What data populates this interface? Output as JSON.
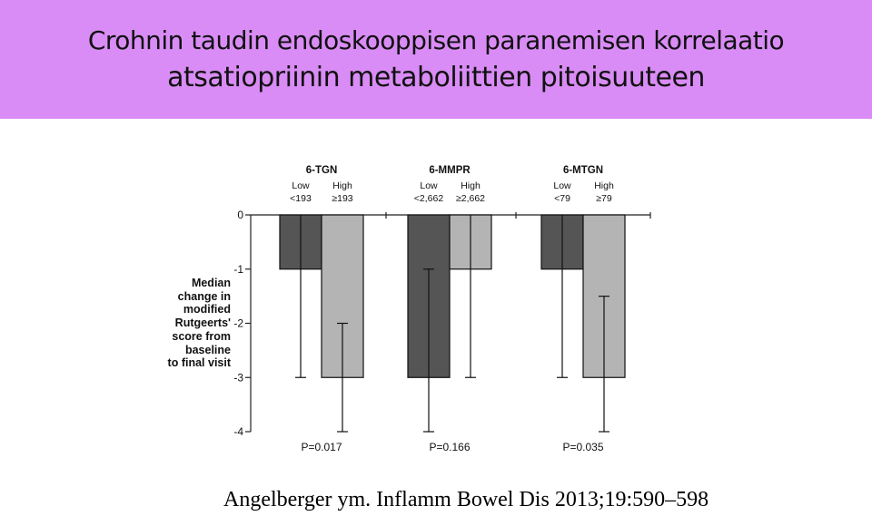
{
  "title": {
    "line1": "Crohnin taudin endoskooppisen paranemisen korrelaatio",
    "line2": "atsatiopriinin metaboliittien pitoisuuteen"
  },
  "citation": "Angelberger ym. Inflamm Bowel Dis 2013;19:590–598",
  "colors": {
    "title_bg": "#d98cf5",
    "low": "#555555",
    "high": "#b4b4b4"
  },
  "chart_data": {
    "type": "bar",
    "ylabel_lines": [
      "Median",
      "change in",
      "modified",
      "Rutgeerts'",
      "score from",
      "baseline",
      "to final visit"
    ],
    "ylim": [
      -4,
      0
    ],
    "yticks": [
      "0",
      "-1",
      "-2",
      "-3",
      "-4"
    ],
    "groups": [
      {
        "name": "6-TGN",
        "pvalue": "P=0.017",
        "bars": [
          {
            "label": "Low",
            "threshold": "<193",
            "value": -1,
            "err_low": -3,
            "err_high": 0
          },
          {
            "label": "High",
            "threshold": "≥193",
            "value": -3,
            "err_low": -4,
            "err_high": -2
          }
        ]
      },
      {
        "name": "6-MMPR",
        "pvalue": "P=0.166",
        "bars": [
          {
            "label": "Low",
            "threshold": "<2,662",
            "value": -3,
            "err_low": -4,
            "err_high": -1
          },
          {
            "label": "High",
            "threshold": "≥2,662",
            "value": -1,
            "err_low": -3,
            "err_high": 0
          }
        ]
      },
      {
        "name": "6-MTGN",
        "pvalue": "P=0.035",
        "bars": [
          {
            "label": "Low",
            "threshold": "<79",
            "value": -1,
            "err_low": -3,
            "err_high": 0
          },
          {
            "label": "High",
            "threshold": "≥79",
            "value": -3,
            "err_low": -4,
            "err_high": -1.5
          }
        ]
      }
    ]
  }
}
